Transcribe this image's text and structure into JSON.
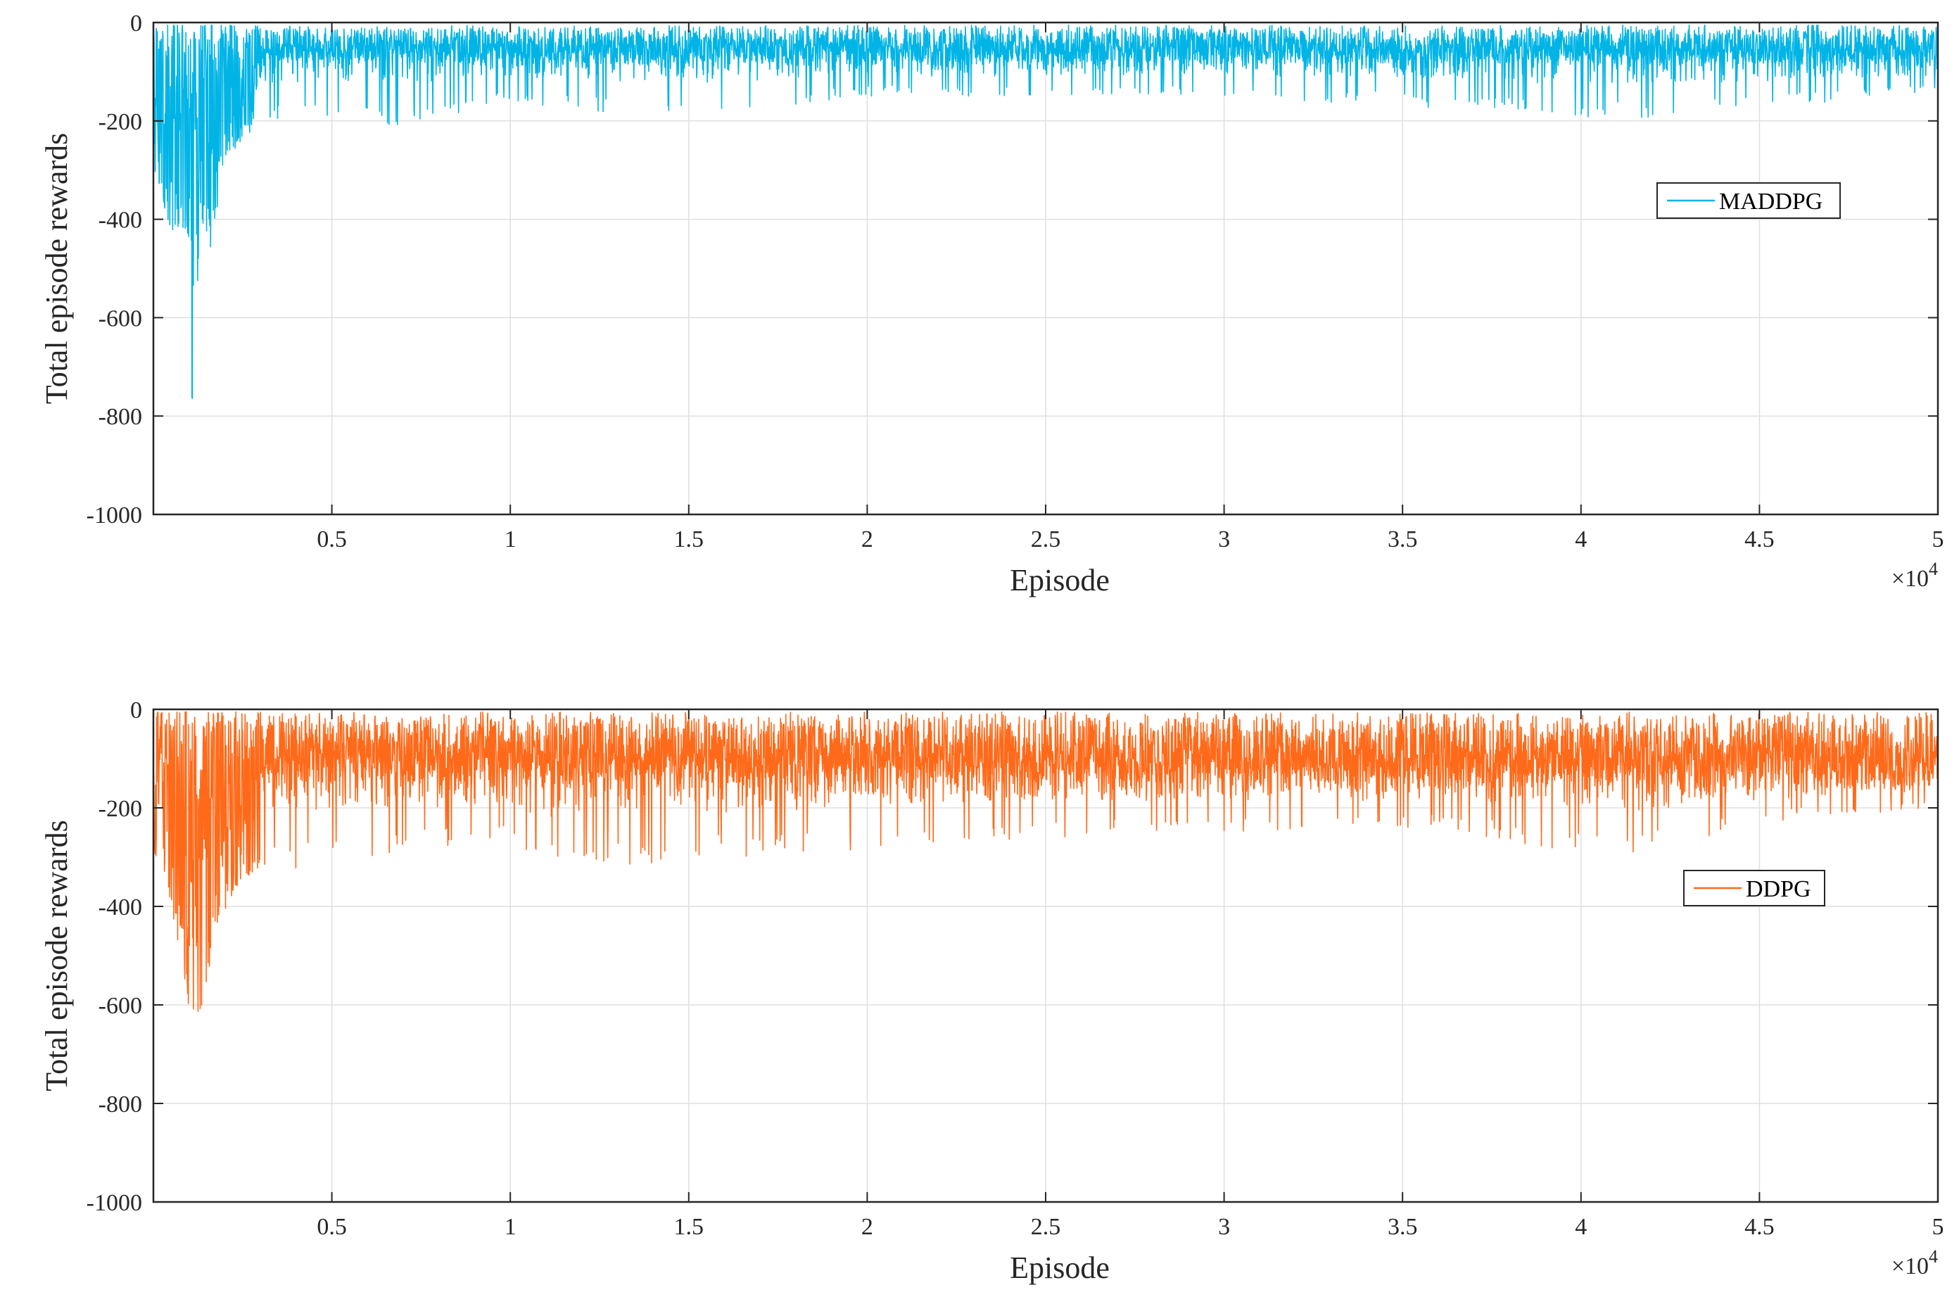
{
  "chart_data": [
    {
      "type": "line",
      "series": [
        {
          "name": "MADDPG",
          "color": "#00b4e6",
          "x_range": [
            0,
            50000
          ],
          "noise_band": {
            "upper": -5,
            "typical_spread": [
              70,
              90
            ]
          },
          "envelope": [
            {
              "x": 0,
              "lower": -300
            },
            {
              "x": 500,
              "lower": -430
            },
            {
              "x": 1000,
              "lower": -450
            },
            {
              "x": 1100,
              "lower": -870
            },
            {
              "x": 1300,
              "lower": -430
            },
            {
              "x": 1600,
              "lower": -480
            },
            {
              "x": 2000,
              "lower": -280
            },
            {
              "x": 3000,
              "lower": -200
            },
            {
              "x": 5000,
              "lower": -190
            },
            {
              "x": 6500,
              "lower": -220
            },
            {
              "x": 10000,
              "lower": -160
            },
            {
              "x": 14400,
              "lower": -200
            },
            {
              "x": 20000,
              "lower": -150
            },
            {
              "x": 30000,
              "lower": -150
            },
            {
              "x": 42000,
              "lower": -200
            },
            {
              "x": 50000,
              "lower": -140
            }
          ]
        }
      ],
      "xlabel": "Episode",
      "ylabel": "Total episode rewards",
      "xlim": [
        0,
        50000
      ],
      "ylim": [
        -1000,
        0
      ],
      "x_ticks": [
        5000,
        10000,
        15000,
        20000,
        25000,
        30000,
        35000,
        40000,
        45000,
        50000
      ],
      "x_tick_labels": [
        "0.5",
        "1",
        "1.5",
        "2",
        "2.5",
        "3",
        "3.5",
        "4",
        "4.5",
        "5"
      ],
      "x_exponent_label": {
        "base": "×10",
        "exp": "4"
      },
      "y_ticks": [
        0,
        -200,
        -400,
        -600,
        -800,
        -1000
      ],
      "y_tick_labels": [
        "0",
        "-200",
        "-400",
        "-600",
        "-800",
        "-1000"
      ],
      "grid": true,
      "legend_position": "right"
    },
    {
      "type": "line",
      "series": [
        {
          "name": "DDPG",
          "color": "#ff6a1a",
          "x_range": [
            0,
            50000
          ],
          "noise_band": {
            "upper": -5,
            "typical_spread": [
              130,
              160
            ]
          },
          "envelope": [
            {
              "x": 0,
              "lower": -300
            },
            {
              "x": 500,
              "lower": -400
            },
            {
              "x": 1000,
              "lower": -620
            },
            {
              "x": 1400,
              "lower": -620
            },
            {
              "x": 1700,
              "lower": -450
            },
            {
              "x": 2500,
              "lower": -340
            },
            {
              "x": 5000,
              "lower": -310
            },
            {
              "x": 10000,
              "lower": -260
            },
            {
              "x": 10800,
              "lower": -330
            },
            {
              "x": 20700,
              "lower": -280
            },
            {
              "x": 25000,
              "lower": -260
            },
            {
              "x": 36000,
              "lower": -240
            },
            {
              "x": 41000,
              "lower": -310
            },
            {
              "x": 45000,
              "lower": -230
            },
            {
              "x": 50000,
              "lower": -200
            }
          ]
        }
      ],
      "xlabel": "Episode",
      "ylabel": "Total episode rewards",
      "xlim": [
        0,
        50000
      ],
      "ylim": [
        -1000,
        0
      ],
      "x_ticks": [
        5000,
        10000,
        15000,
        20000,
        25000,
        30000,
        35000,
        40000,
        45000,
        50000
      ],
      "x_tick_labels": [
        "0.5",
        "1",
        "1.5",
        "2",
        "2.5",
        "3",
        "3.5",
        "4",
        "4.5",
        "5"
      ],
      "x_exponent_label": {
        "base": "×10",
        "exp": "4"
      },
      "y_ticks": [
        0,
        -200,
        -400,
        -600,
        -800,
        -1000
      ],
      "y_tick_labels": [
        "0",
        "-200",
        "-400",
        "-600",
        "-800",
        "-1000"
      ],
      "grid": true,
      "legend_position": "right"
    }
  ]
}
